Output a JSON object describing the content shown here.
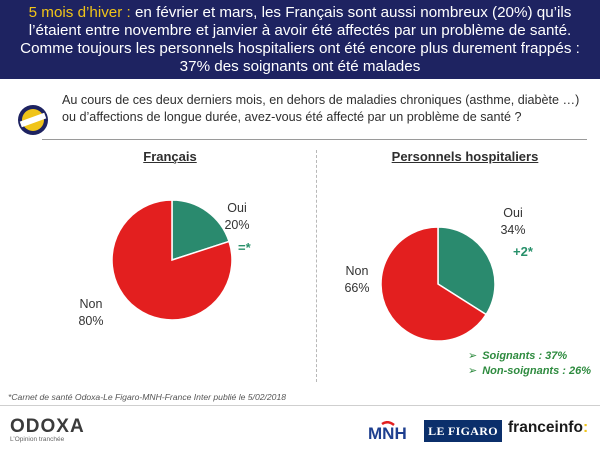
{
  "header": {
    "highlight": "5 mois d’hiver :",
    "text": " en février et mars, les Français sont aussi nombreux (20%) qu’ils l’étaient entre novembre et janvier à avoir été affectés par un problème de santé. Comme toujours les personnels hospitaliers ont été encore plus durement frappés : 37% des soignants ont été malades"
  },
  "question": "Au cours de ces deux derniers mois, en dehors de maladies chroniques (asthme, diabète …) ou d’affections de longue durée, avez-vous été affecté par un problème de santé ?",
  "chart_data": [
    {
      "type": "pie",
      "title": "Français",
      "slices": [
        {
          "label": "Oui",
          "value": 20,
          "display": "20%",
          "color": "#2a8a6e"
        },
        {
          "label": "Non",
          "value": 80,
          "display": "80%",
          "color": "#e31f1f"
        }
      ],
      "annotation": "=*"
    },
    {
      "type": "pie",
      "title": "Personnels hospitaliers",
      "slices": [
        {
          "label": "Oui",
          "value": 34,
          "display": "34%",
          "color": "#2a8a6e"
        },
        {
          "label": "Non",
          "value": 66,
          "display": "66%",
          "color": "#e31f1f"
        }
      ],
      "annotation": "+2*"
    }
  ],
  "breakdown": {
    "items": [
      "Soignants : 37%",
      "Non-soignants : 26%"
    ],
    "color": "#2e8b3f"
  },
  "footnote": "*Carnet de santé Odoxa-Le Figaro-MNH-France Inter publié le 5/02/2018",
  "footer": {
    "odoxa_name": "ODOXA",
    "odoxa_tagline": "L’Opinion tranchée",
    "mnh": "MNH",
    "figaro": "LE FIGARO",
    "franceinfo": "franceinfo",
    "franceinfo_suffix": ":"
  },
  "colors": {
    "header_bg": "#1e2361",
    "header_highlight": "#f0c419",
    "oui": "#2a8a6e",
    "non": "#e31f1f"
  }
}
